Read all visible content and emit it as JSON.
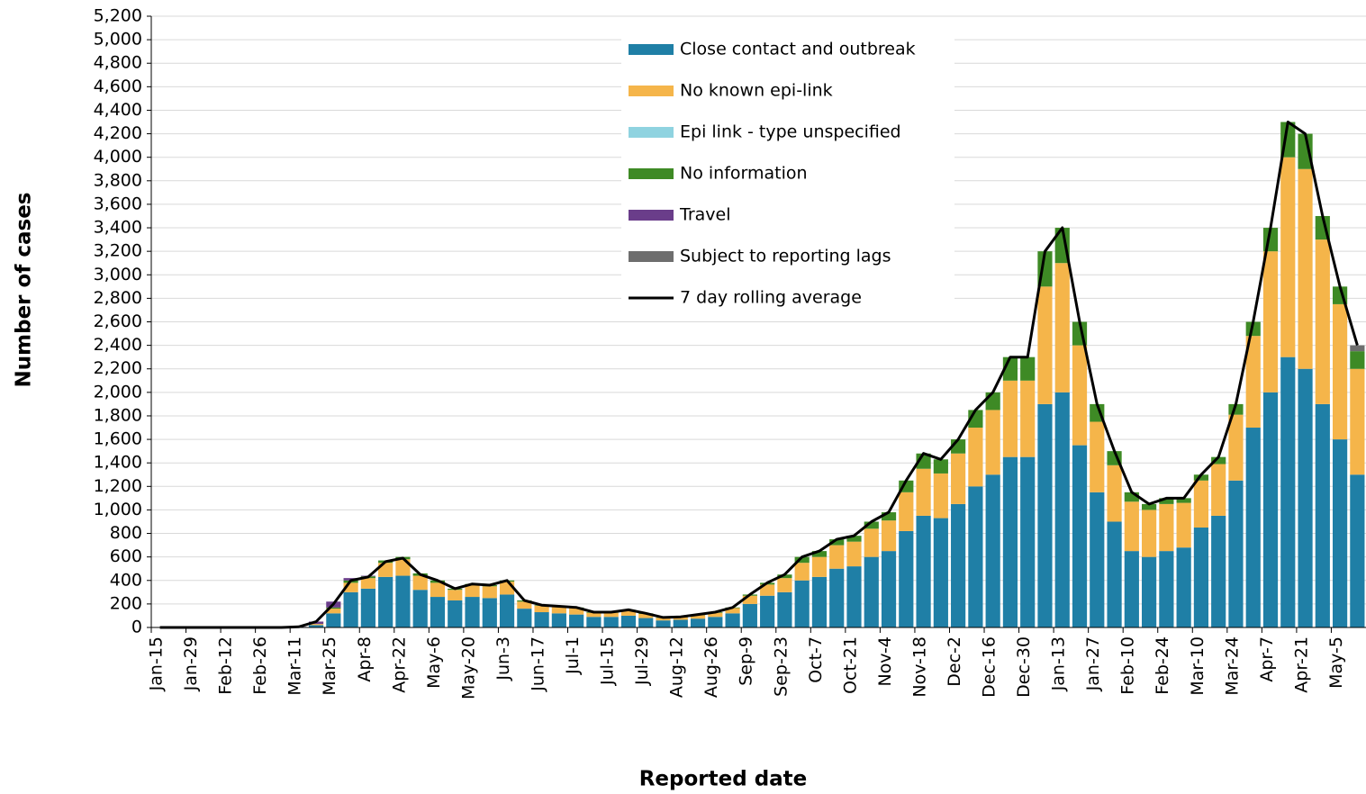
{
  "chart_data": {
    "type": "bar",
    "stacked": true,
    "x_title": "Reported date",
    "y_title": "Number of cases",
    "categories": [
      "Jan-15",
      null,
      "Jan-29",
      null,
      "Feb-12",
      null,
      "Feb-26",
      null,
      "Mar-11",
      null,
      "Mar-25",
      null,
      "Apr-8",
      null,
      "Apr-22",
      null,
      "May-6",
      null,
      "May-20",
      null,
      "Jun-3",
      null,
      "Jun-17",
      null,
      "Jul-1",
      null,
      "Jul-15",
      null,
      "Jul-29",
      null,
      "Aug-12",
      null,
      "Aug-26",
      null,
      "Sep-9",
      null,
      "Sep-23",
      null,
      "Oct-7",
      null,
      "Oct-21",
      null,
      "Nov-4",
      null,
      "Nov-18",
      null,
      "Dec-2",
      null,
      "Dec-16",
      null,
      "Dec-30",
      null,
      "Jan-13",
      null,
      "Jan-27",
      null,
      "Feb-10",
      null,
      "Feb-24",
      null,
      "Mar-10",
      null,
      "Mar-24",
      null,
      "Apr-7",
      null,
      "Apr-21",
      null,
      "May-5",
      null
    ],
    "series": [
      {
        "name": "Close contact and outbreak",
        "color": "#1f7fa6",
        "values": [
          0,
          0,
          0,
          0,
          0,
          0,
          0,
          0,
          2,
          20,
          120,
          300,
          330,
          430,
          440,
          320,
          260,
          230,
          260,
          250,
          280,
          160,
          130,
          120,
          110,
          90,
          90,
          100,
          80,
          60,
          65,
          75,
          90,
          120,
          200,
          270,
          300,
          400,
          430,
          500,
          520,
          600,
          650,
          820,
          950,
          930,
          1050,
          1200,
          1300,
          1450,
          1450,
          1900,
          2000,
          1550,
          1150,
          900,
          650,
          600,
          650,
          680,
          850,
          950,
          1250,
          1700,
          2000,
          2300,
          2200,
          1900,
          1600,
          1300
        ]
      },
      {
        "name": "No known epi-link",
        "color": "#f5b54a",
        "values": [
          0,
          0,
          0,
          0,
          0,
          0,
          0,
          0,
          1,
          10,
          40,
          80,
          90,
          120,
          140,
          120,
          120,
          90,
          100,
          100,
          110,
          60,
          55,
          55,
          55,
          35,
          35,
          45,
          35,
          22,
          22,
          30,
          35,
          45,
          70,
          95,
          120,
          150,
          170,
          200,
          210,
          240,
          260,
          330,
          400,
          380,
          430,
          500,
          550,
          650,
          650,
          1000,
          1100,
          850,
          600,
          480,
          420,
          400,
          400,
          380,
          400,
          440,
          560,
          780,
          1200,
          1700,
          1700,
          1400,
          1150,
          900
        ]
      },
      {
        "name": "Epi link - type unspecified",
        "color": "#8fd3e0",
        "values": [
          0,
          0,
          0,
          0,
          0,
          0,
          0,
          0,
          0,
          0,
          0,
          0,
          0,
          0,
          0,
          0,
          0,
          0,
          0,
          0,
          0,
          0,
          0,
          0,
          0,
          0,
          0,
          0,
          0,
          0,
          0,
          0,
          0,
          0,
          0,
          0,
          0,
          0,
          0,
          0,
          0,
          0,
          0,
          0,
          0,
          0,
          0,
          0,
          0,
          0,
          0,
          0,
          0,
          0,
          0,
          0,
          0,
          0,
          0,
          0,
          0,
          0,
          0,
          0,
          0,
          0,
          0,
          0,
          0,
          0
        ]
      },
      {
        "name": "No information",
        "color": "#3e8a25",
        "values": [
          0,
          0,
          0,
          0,
          0,
          0,
          0,
          0,
          0,
          0,
          10,
          20,
          15,
          20,
          20,
          20,
          20,
          10,
          10,
          10,
          10,
          10,
          5,
          5,
          5,
          5,
          5,
          5,
          5,
          3,
          3,
          5,
          5,
          5,
          10,
          15,
          30,
          50,
          50,
          50,
          50,
          60,
          70,
          100,
          130,
          120,
          120,
          150,
          150,
          200,
          200,
          300,
          300,
          200,
          150,
          120,
          80,
          50,
          50,
          40,
          50,
          60,
          90,
          120,
          200,
          300,
          300,
          200,
          150,
          150
        ]
      },
      {
        "name": "Travel",
        "color": "#6a3d8a",
        "values": [
          0,
          0,
          0,
          0,
          0,
          0,
          0,
          0,
          2,
          20,
          50,
          20,
          5,
          0,
          0,
          0,
          0,
          0,
          0,
          0,
          0,
          0,
          0,
          0,
          0,
          0,
          0,
          0,
          0,
          0,
          0,
          0,
          0,
          0,
          0,
          0,
          0,
          0,
          0,
          0,
          0,
          0,
          0,
          0,
          0,
          0,
          0,
          0,
          0,
          0,
          0,
          0,
          0,
          0,
          0,
          0,
          0,
          0,
          0,
          0,
          0,
          0,
          0,
          0,
          0,
          0,
          0,
          0,
          0,
          0
        ]
      },
      {
        "name": "Subject to reporting lags",
        "color": "#6e6e6e",
        "values": [
          0,
          0,
          0,
          0,
          0,
          0,
          0,
          0,
          0,
          0,
          0,
          0,
          0,
          0,
          0,
          0,
          0,
          0,
          0,
          0,
          0,
          0,
          0,
          0,
          0,
          0,
          0,
          0,
          0,
          0,
          0,
          0,
          0,
          0,
          0,
          0,
          0,
          0,
          0,
          0,
          0,
          0,
          0,
          0,
          0,
          0,
          0,
          0,
          0,
          0,
          0,
          0,
          0,
          0,
          0,
          0,
          0,
          0,
          0,
          0,
          0,
          0,
          0,
          0,
          0,
          0,
          0,
          0,
          0,
          50
        ]
      }
    ],
    "line_series": {
      "name": "7 day rolling average",
      "color": "#000000",
      "values": [
        0,
        0,
        0,
        0,
        0,
        0,
        0,
        0,
        5,
        50,
        200,
        400,
        430,
        560,
        590,
        450,
        400,
        330,
        370,
        360,
        400,
        230,
        190,
        180,
        170,
        130,
        130,
        150,
        120,
        85,
        90,
        110,
        130,
        170,
        280,
        380,
        450,
        600,
        650,
        750,
        780,
        900,
        980,
        1250,
        1480,
        1430,
        1600,
        1850,
        2000,
        2300,
        2300,
        3200,
        3400,
        2600,
        1900,
        1500,
        1150,
        1050,
        1100,
        1100,
        1300,
        1450,
        1900,
        2600,
        3400,
        4300,
        4200,
        3500,
        2900,
        2400
      ]
    },
    "ylim": [
      0,
      5200
    ],
    "yticks": [
      0,
      200,
      400,
      600,
      800,
      {
        "value": 1000,
        "label": "1,000"
      },
      {
        "value": 1200,
        "label": "1,200"
      },
      {
        "value": 1400,
        "label": "1,400"
      },
      {
        "value": 1600,
        "label": "1,600"
      },
      {
        "value": 1800,
        "label": "1,800"
      },
      {
        "value": 2000,
        "label": "2,000"
      },
      {
        "value": 2200,
        "label": "2,200"
      },
      {
        "value": 2400,
        "label": "2,400"
      },
      {
        "value": 2600,
        "label": "2,600"
      },
      {
        "value": 2800,
        "label": "2,800"
      },
      {
        "value": 3000,
        "label": "3,000"
      },
      {
        "value": 3200,
        "label": "3,200"
      },
      {
        "value": 3400,
        "label": "3,400"
      },
      {
        "value": 3600,
        "label": "3,600"
      },
      {
        "value": 3800,
        "label": "3,800"
      },
      {
        "value": 4000,
        "label": "4,000"
      },
      {
        "value": 4200,
        "label": "4,200"
      },
      {
        "value": 4400,
        "label": "4,400"
      },
      {
        "value": 4600,
        "label": "4,600"
      },
      {
        "value": 4800,
        "label": "4,800"
      },
      {
        "value": 5000,
        "label": "5,000"
      },
      {
        "value": 5200,
        "label": "5,200"
      }
    ],
    "grid": true
  }
}
